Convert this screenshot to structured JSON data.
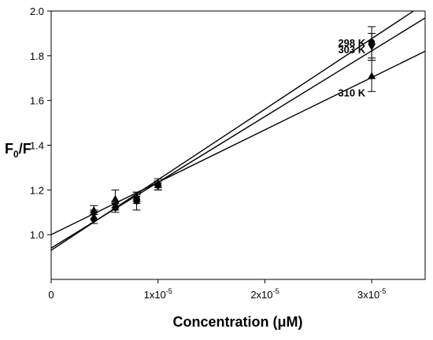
{
  "chart_data": {
    "type": "scatter",
    "xlabel": "Concentration (μM)",
    "ylabel": "F0/F",
    "ylabel_main": "F",
    "ylabel_sub": "0",
    "ylabel_tail": "/F",
    "xlim": [
      0,
      3.5e-05
    ],
    "ylim": [
      0.8,
      2.0
    ],
    "grid": false,
    "x_ticks": [
      {
        "value": 0,
        "label": "0"
      },
      {
        "value": 1e-05,
        "label": "1x10-5",
        "mantissa": "1x10",
        "exponent": "-5"
      },
      {
        "value": 2e-05,
        "label": "2x10-5",
        "mantissa": "2x10",
        "exponent": "-5"
      },
      {
        "value": 3e-05,
        "label": "3x10-5",
        "mantissa": "3x10",
        "exponent": "-5"
      }
    ],
    "y_ticks": [
      {
        "value": 1.0,
        "label": "1.0"
      },
      {
        "value": 1.2,
        "label": "1.2"
      },
      {
        "value": 1.4,
        "label": "1.4"
      },
      {
        "value": 1.6,
        "label": "1.6"
      },
      {
        "value": 1.8,
        "label": "1.8"
      },
      {
        "value": 2.0,
        "label": "2.0"
      }
    ],
    "series": [
      {
        "name": "298 K",
        "marker": "circle",
        "x": [
          4e-06,
          6e-06,
          8e-06,
          1e-05,
          3e-05
        ],
        "y": [
          1.07,
          1.12,
          1.15,
          1.22,
          1.86
        ],
        "err": [
          0.02,
          0.02,
          0.04,
          0.02,
          0.07
        ],
        "fit": {
          "slope": 31550,
          "intercept": 0.93
        }
      },
      {
        "name": "303 K",
        "marker": "inverted-triangle",
        "x": [
          4e-06,
          6e-06,
          8e-06,
          1e-05,
          3e-05
        ],
        "y": [
          1.09,
          1.13,
          1.16,
          1.22,
          1.84
        ],
        "err": [
          0.02,
          0.02,
          0.02,
          0.02,
          0.06
        ],
        "fit": {
          "slope": 29400,
          "intercept": 0.94
        }
      },
      {
        "name": "310 K",
        "marker": "triangle",
        "x": [
          4e-06,
          6e-06,
          8e-06,
          1e-05,
          3e-05
        ],
        "y": [
          1.11,
          1.16,
          1.17,
          1.23,
          1.71
        ],
        "err": [
          0.02,
          0.04,
          0.02,
          0.02,
          0.07
        ],
        "fit": {
          "slope": 23430,
          "intercept": 1.0
        }
      }
    ]
  }
}
